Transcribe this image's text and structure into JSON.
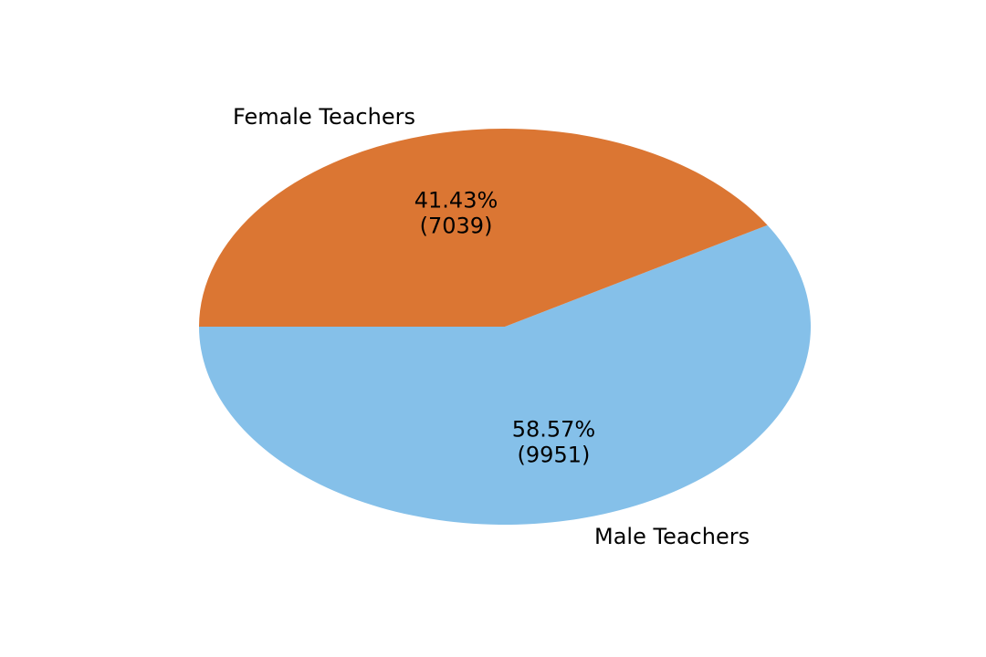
{
  "chart_data": {
    "type": "pie",
    "title": "",
    "start_angle_deg": 180,
    "direction": "counterclockwise",
    "categories": [
      "Male Teachers",
      "Female Teachers"
    ],
    "values": [
      9951,
      7039
    ],
    "percentages": [
      "58.57%",
      "41.43%"
    ],
    "value_labels": [
      "(9951)",
      "(7039)"
    ],
    "colors": [
      "#85c0e9",
      "#db7633"
    ]
  }
}
